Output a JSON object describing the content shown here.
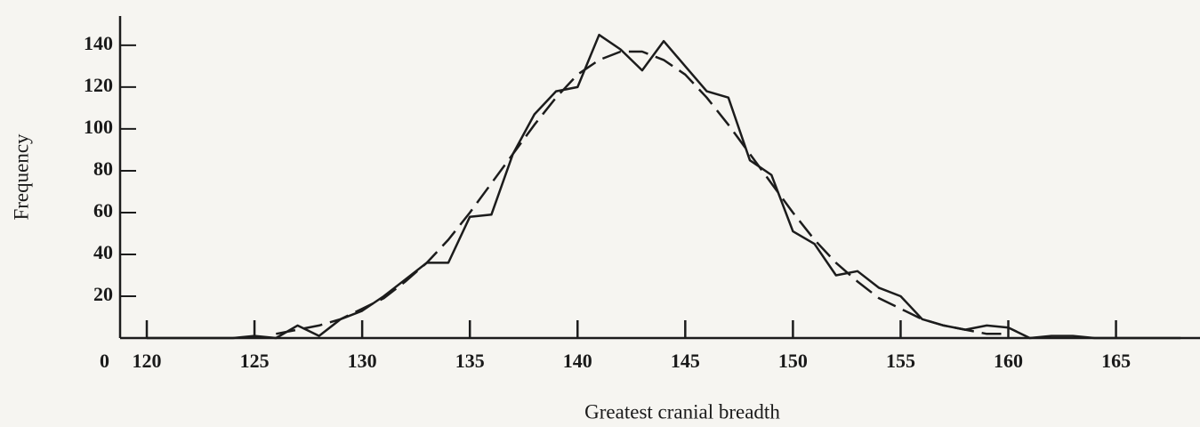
{
  "chart_data": {
    "type": "line",
    "x_label": "Greatest cranial breadth",
    "y_label": "Frequency",
    "xlim": [
      118.76,
      168.9
    ],
    "ylim": [
      0,
      154
    ],
    "xticks": [
      120,
      125,
      130,
      135,
      140,
      145,
      150,
      155,
      160,
      165
    ],
    "yticks": [
      0,
      20,
      40,
      60,
      80,
      100,
      120,
      140
    ],
    "series": [
      {
        "color": "#1c1c1c",
        "dashed": false,
        "x": [
          120,
          121,
          122,
          123,
          124,
          125,
          126,
          127,
          128,
          129,
          130,
          131,
          132,
          133,
          134,
          135,
          136,
          137,
          138,
          139,
          140,
          141,
          142,
          143,
          144,
          145,
          146,
          147,
          148,
          149,
          150,
          151,
          152,
          153,
          154,
          155,
          156,
          157,
          158,
          159,
          160,
          161,
          162,
          163,
          164,
          165,
          166,
          167,
          168
        ],
        "values": [
          0,
          0,
          0,
          0,
          0,
          1,
          0,
          6,
          1,
          9,
          13,
          20,
          28,
          36,
          36,
          58,
          59,
          88,
          107,
          118,
          120,
          145,
          138,
          128,
          142,
          130,
          118,
          115,
          85,
          78,
          51,
          45,
          30,
          32,
          24,
          20,
          9,
          6,
          4,
          6,
          5,
          0,
          1,
          1,
          0,
          0,
          0,
          0,
          0
        ]
      },
      {
        "color": "#1c1c1c",
        "dashed": true,
        "x": [
          126,
          127,
          128,
          129,
          130,
          131,
          132,
          133,
          134,
          135,
          136,
          137,
          138,
          139,
          140,
          141,
          142,
          143,
          144,
          145,
          146,
          147,
          148,
          149,
          150,
          151,
          152,
          153,
          154,
          155,
          156,
          157,
          158,
          159,
          160
        ],
        "values": [
          2,
          4,
          6,
          9,
          14,
          19,
          27,
          36,
          47,
          60,
          74,
          88,
          102,
          115,
          126,
          133,
          137,
          137,
          133,
          126,
          115,
          102,
          88,
          74,
          60,
          47,
          36,
          27,
          19,
          14,
          9,
          6,
          4,
          2,
          2
        ]
      }
    ]
  }
}
